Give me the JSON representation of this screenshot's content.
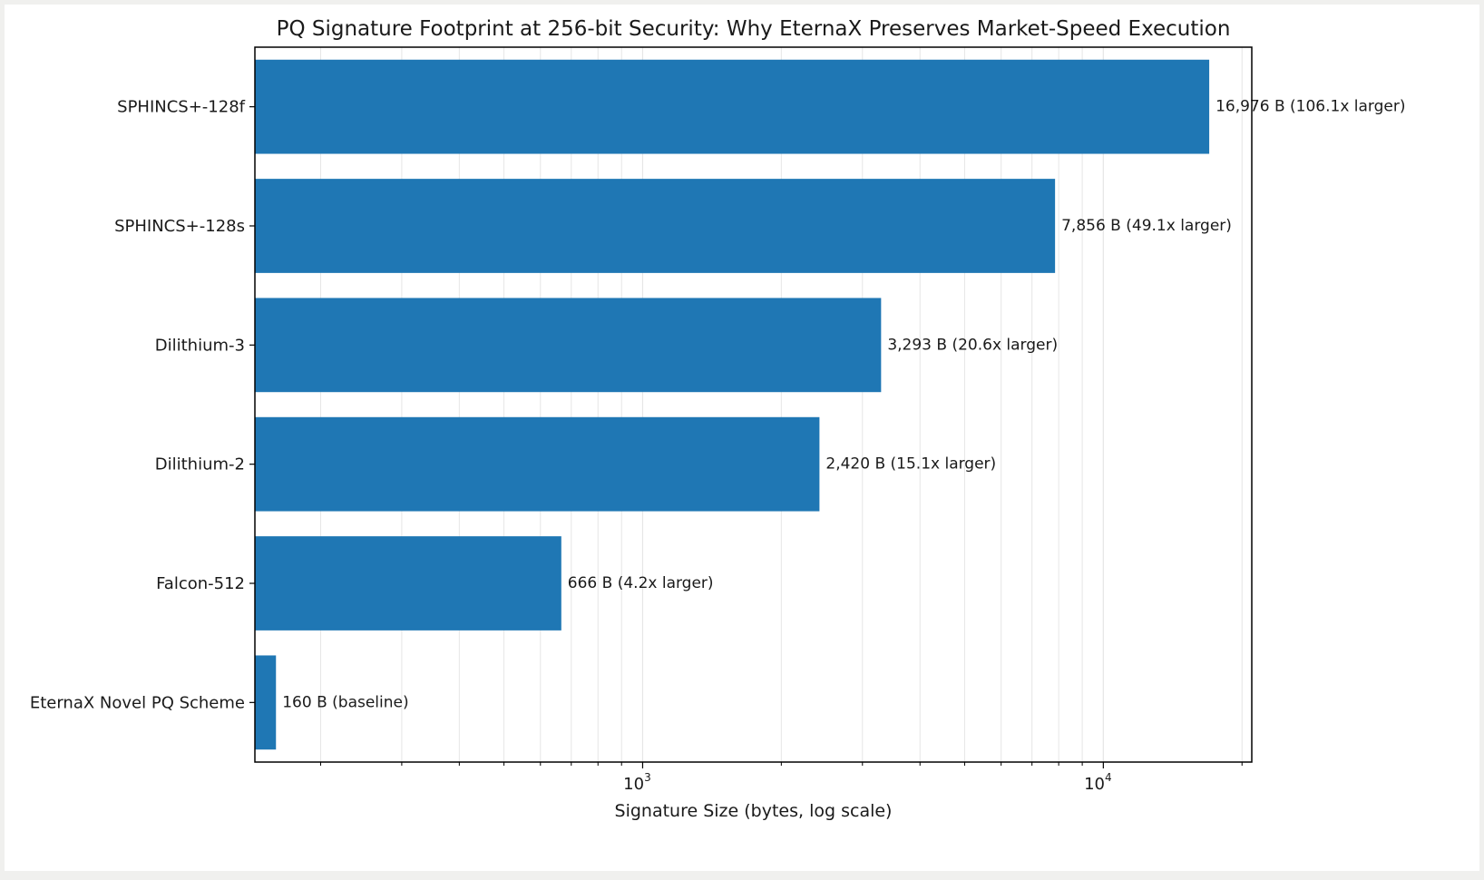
{
  "chart_data": {
    "type": "bar",
    "orientation": "horizontal",
    "title": "PQ Signature Footprint at 256-bit Security: Why EternaX Preserves Market-Speed Execution",
    "xlabel": "Signature Size (bytes, log scale)",
    "ylabel": "",
    "xscale": "log",
    "xlim": [
      144,
      21000
    ],
    "grid": "x-minor",
    "categories": [
      "EternaX Novel PQ Scheme",
      "Falcon-512",
      "Dilithium-2",
      "Dilithium-3",
      "SPHINCS+-128s",
      "SPHINCS+-128f"
    ],
    "values": [
      160,
      666,
      2420,
      3293,
      7856,
      16976
    ],
    "data_labels": [
      "160 B  (baseline)",
      "666 B  (4.2x larger)",
      "2,420 B  (15.1x larger)",
      "3,293 B  (20.6x larger)",
      "7,856 B  (49.1x larger)",
      "16,976 B  (106.1x larger)"
    ],
    "major_ticks": [
      {
        "value": 1000,
        "base": "10",
        "exp": "3"
      },
      {
        "value": 10000,
        "base": "10",
        "exp": "4"
      }
    ],
    "minor_ticks": [
      200,
      300,
      400,
      500,
      600,
      700,
      800,
      900,
      2000,
      3000,
      4000,
      5000,
      6000,
      7000,
      8000,
      9000,
      20000
    ],
    "colors": {
      "bar": "#1f77b4",
      "grid": "#e6e6e6",
      "axis": "#000000"
    }
  }
}
